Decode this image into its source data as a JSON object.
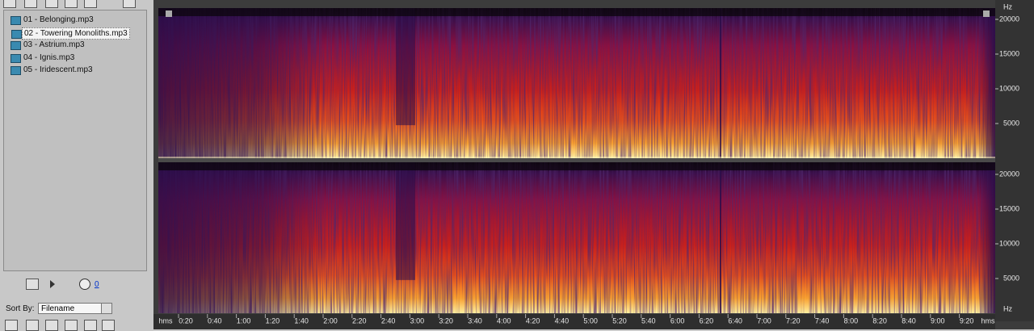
{
  "files": [
    "01 - Belonging.mp3",
    "02 - Towering Monoliths.mp3",
    "03 - Astrium.mp3",
    "04 - Ignis.mp3",
    "05 - Iridescent.mp3"
  ],
  "volume_value": "0",
  "sort_by": {
    "label": "Sort By:",
    "value": "Filename"
  },
  "time_ruler": {
    "unit_left": "hms",
    "unit_right": "hms",
    "labels": [
      "0:20",
      "0:40",
      "1:00",
      "1:20",
      "1:40",
      "2:00",
      "2:20",
      "2:40",
      "3:00",
      "3:20",
      "3:40",
      "4:00",
      "4:20",
      "4:40",
      "5:00",
      "5:20",
      "5:40",
      "6:00",
      "6:20",
      "6:40",
      "7:00",
      "7:20",
      "7:40",
      "8:00",
      "8:20",
      "8:40",
      "9:00",
      "9:20"
    ]
  },
  "channels": [
    {
      "unit": "Hz",
      "labels": [
        "20000",
        "15000",
        "10000",
        "5000"
      ]
    },
    {
      "unit": "Hz",
      "labels": [
        "20000",
        "15000",
        "10000",
        "5000"
      ]
    }
  ]
}
